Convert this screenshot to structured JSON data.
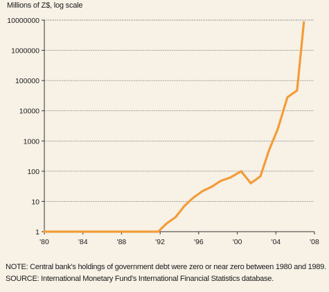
{
  "chart_data": {
    "type": "line",
    "ylabel": "Millions of Z$, log scale",
    "yscale": "log",
    "ylim": [
      1,
      10000000
    ],
    "xlim": [
      1980,
      2008
    ],
    "yticks": [
      "1",
      "10",
      "100",
      "1000",
      "10000",
      "100000",
      "1000000",
      "10000000"
    ],
    "xticks": [
      "'80",
      "'84",
      "'88",
      "'92",
      "'96",
      "'00",
      "'04",
      "'08"
    ],
    "grid": "horizontal dotted",
    "series": [
      {
        "color": "#f39c37",
        "points": [
          {
            "x": 1980.0,
            "y": 1
          },
          {
            "x": 1984.0,
            "y": 1
          },
          {
            "x": 1988.0,
            "y": 1
          },
          {
            "x": 1991.8,
            "y": 1
          },
          {
            "x": 1992.7,
            "y": 1.9
          },
          {
            "x": 1993.6,
            "y": 3.0
          },
          {
            "x": 1994.5,
            "y": 7.0
          },
          {
            "x": 1995.4,
            "y": 13
          },
          {
            "x": 1996.4,
            "y": 22
          },
          {
            "x": 1997.3,
            "y": 30
          },
          {
            "x": 1998.3,
            "y": 48
          },
          {
            "x": 1999.3,
            "y": 62
          },
          {
            "x": 2000.4,
            "y": 100
          },
          {
            "x": 2001.4,
            "y": 40
          },
          {
            "x": 2002.4,
            "y": 68
          },
          {
            "x": 2003.3,
            "y": 500
          },
          {
            "x": 2004.2,
            "y": 2500
          },
          {
            "x": 2005.2,
            "y": 28000
          },
          {
            "x": 2006.2,
            "y": 47000
          },
          {
            "x": 2006.9,
            "y": 8500000
          }
        ]
      }
    ]
  },
  "notes": {
    "note": "NOTE: Central bank's holdings of government debt were zero or near zero between 1980 and 1989.",
    "source": "SOURCE: International Monetary Fund's International Financial Statistics database."
  },
  "colors": {
    "background": "#f7f1e6",
    "line": "#f39c37",
    "axis": "#333333",
    "grid": "#555555"
  }
}
